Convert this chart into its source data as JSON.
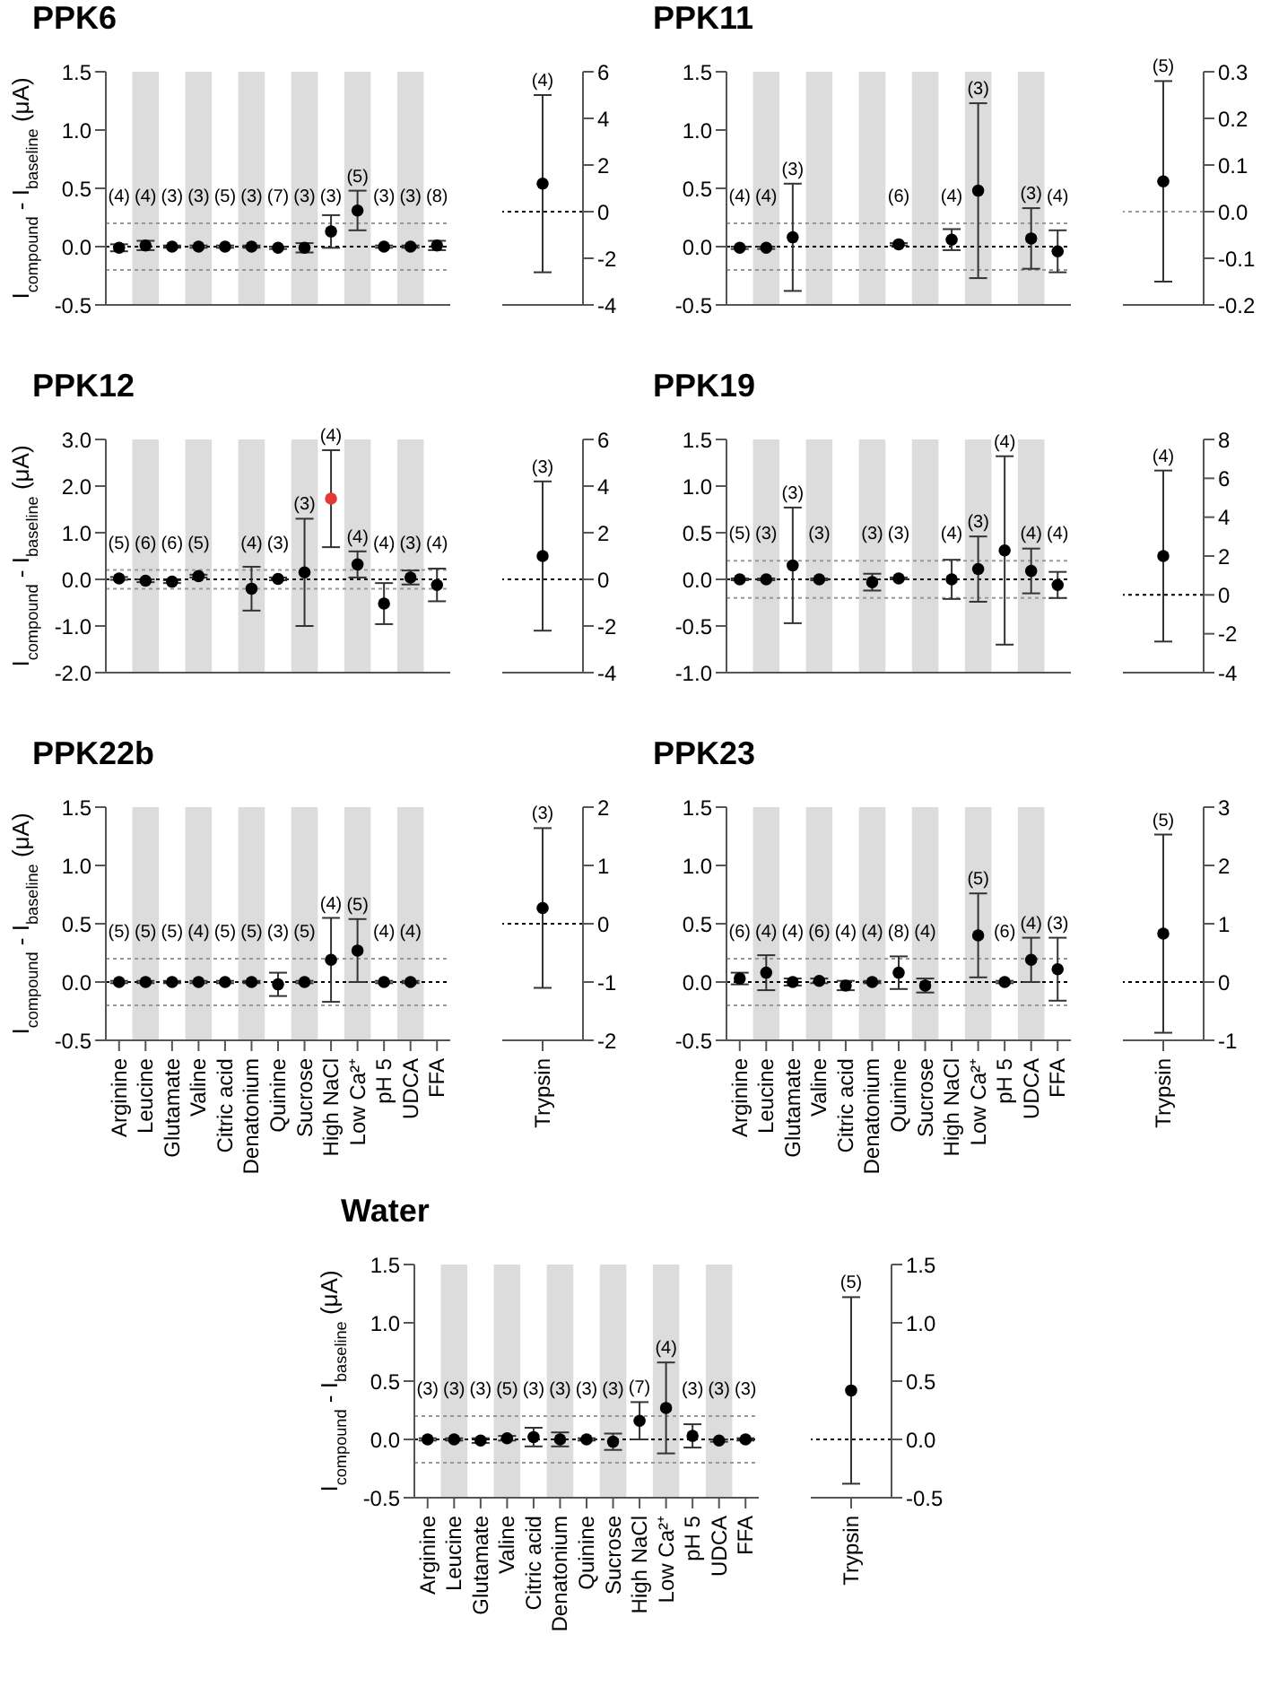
{
  "chart_data": [
    {
      "type": "scatter",
      "title": "PPK6",
      "ylabel": "I$_{compound}$ - I$_{baseline}$ (μA)",
      "categories": [
        "Arginine",
        "Leucine",
        "Glutamate",
        "Valine",
        "Citric acid",
        "Denatonium",
        "Quinine",
        "Sucrose",
        "High NaCl",
        "Low Ca²⁺",
        "pH 5",
        "UDCA",
        "FFA"
      ],
      "values": [
        -0.01,
        0.01,
        0,
        0,
        0,
        0,
        -0.01,
        -0.01,
        0.13,
        0.31,
        0,
        0,
        0.01
      ],
      "errors": [
        0.03,
        0.04,
        0.01,
        0.01,
        0.01,
        0.01,
        0.01,
        0.04,
        0.14,
        0.17,
        0.01,
        0.01,
        0.04
      ],
      "color": "#000000",
      "marker": "circle",
      "ylim": [
        -0.5,
        1.5
      ],
      "yticks": [
        -0.5,
        {
          "value": 0,
          "label": "0.0"
        },
        0.5,
        {
          "value": 1,
          "label": "1.0"
        },
        1.5
      ],
      "tick_labels": "y",
      "bands": [
        {
          "axis": "x",
          "from": "Leucine",
          "to": "Leucine",
          "color": "#dcdcdc"
        },
        {
          "axis": "x",
          "from": "Valine",
          "to": "Valine",
          "color": "#dcdcdc"
        },
        {
          "axis": "x",
          "from": "Denatonium",
          "to": "Denatonium",
          "color": "#dcdcdc"
        },
        {
          "axis": "x",
          "from": "Sucrose",
          "to": "Sucrose",
          "color": "#dcdcdc"
        },
        {
          "axis": "x",
          "from": "Low Ca²⁺",
          "to": "Low Ca²⁺",
          "color": "#dcdcdc"
        },
        {
          "axis": "x",
          "from": "UDCA",
          "to": "UDCA",
          "color": "#dcdcdc"
        }
      ],
      "ref_lines": [
        {
          "axis": "y",
          "value": 0,
          "line_style": "dotted",
          "color": "#000000"
        },
        {
          "axis": "y",
          "value": 0.2,
          "line_style": "dotted",
          "color": "#999999"
        },
        {
          "axis": "y",
          "value": -0.2,
          "line_style": "dotted",
          "color": "#999999"
        }
      ],
      "annotations": [
        {
          "text": "(4)",
          "x": "Arginine",
          "y": 0.02
        },
        {
          "text": "(4)",
          "x": "Leucine",
          "y": 0.05
        },
        {
          "text": "(3)",
          "x": "Glutamate",
          "y": 0.01
        },
        {
          "text": "(3)",
          "x": "Valine",
          "y": 0.01
        },
        {
          "text": "(5)",
          "x": "Citric acid",
          "y": 0.01
        },
        {
          "text": "(3)",
          "x": "Denatonium",
          "y": 0.01
        },
        {
          "text": "(7)",
          "x": "Quinine",
          "y": 0
        },
        {
          "text": "(3)",
          "x": "Sucrose",
          "y": 0.03
        },
        {
          "text": "(3)",
          "x": "High NaCl",
          "y": 0.27
        },
        {
          "text": "(5)",
          "x": "Low Ca²⁺",
          "y": 0.48
        },
        {
          "text": "(3)",
          "x": "pH 5",
          "y": 0.01
        },
        {
          "text": "(3)",
          "x": "UDCA",
          "y": 0.01
        },
        {
          "text": "(8)",
          "x": "FFA",
          "y": 0.05
        }
      ]
    },
    {
      "type": "scatter",
      "categories": [
        "Trypsin"
      ],
      "series": [
        {
          "values": [
            1.2
          ],
          "errors": [
            3.8
          ],
          "color": "#000000"
        }
      ],
      "marker": "circle",
      "ylim": [
        -4,
        6
      ],
      "yticks": [
        -4,
        -2,
        0,
        2,
        4,
        6
      ],
      "tick_labels": "y",
      "ref_lines": [
        {
          "axis": "y",
          "value": 0,
          "line_style": "dotted",
          "color": "#000000"
        }
      ],
      "annotations": [
        {
          "text": "(4)",
          "x": "Trypsin",
          "y": 5
        }
      ]
    },
    {
      "type": "scatter",
      "title": "PPK11",
      "categories": [
        "Arginine",
        "Leucine",
        "Glutamate",
        "Valine",
        "Citric acid",
        "Denatonium",
        "Quinine",
        "Sucrose",
        "High NaCl",
        "Low Ca²⁺",
        "pH 5",
        "UDCA",
        "FFA"
      ],
      "values": [
        -0.01,
        -0.01,
        0.08,
        null,
        null,
        null,
        0.02,
        null,
        0.06,
        0.48,
        null,
        0.07,
        -0.04
      ],
      "errors": [
        0.01,
        0.01,
        0.46,
        null,
        null,
        null,
        0.01,
        null,
        0.09,
        0.75,
        null,
        0.26,
        0.18
      ],
      "color": "#000000",
      "marker": "circle",
      "ylim": [
        -0.5,
        1.5
      ],
      "yticks": [
        -0.5,
        {
          "value": 0,
          "label": "0.0"
        },
        0.5,
        {
          "value": 1,
          "label": "1.0"
        },
        1.5
      ],
      "tick_labels": "y",
      "bands": [
        {
          "axis": "x",
          "from": "Leucine",
          "to": "Leucine",
          "color": "#dcdcdc"
        },
        {
          "axis": "x",
          "from": "Valine",
          "to": "Valine",
          "color": "#dcdcdc"
        },
        {
          "axis": "x",
          "from": "Denatonium",
          "to": "Denatonium",
          "color": "#dcdcdc"
        },
        {
          "axis": "x",
          "from": "Sucrose",
          "to": "Sucrose",
          "color": "#dcdcdc"
        },
        {
          "axis": "x",
          "from": "Low Ca²⁺",
          "to": "Low Ca²⁺",
          "color": "#dcdcdc"
        },
        {
          "axis": "x",
          "from": "UDCA",
          "to": "UDCA",
          "color": "#dcdcdc"
        }
      ],
      "ref_lines": [
        {
          "axis": "y",
          "value": 0,
          "line_style": "dotted",
          "color": "#000000"
        },
        {
          "axis": "y",
          "value": 0.2,
          "line_style": "dotted",
          "color": "#999999"
        },
        {
          "axis": "y",
          "value": -0.2,
          "line_style": "dotted",
          "color": "#999999"
        }
      ],
      "annotations": [
        {
          "text": "(4)",
          "x": "Arginine",
          "y": 0
        },
        {
          "text": "(4)",
          "x": "Leucine",
          "y": 0
        },
        {
          "text": "(3)",
          "x": "Glutamate",
          "y": 0.54
        },
        {
          "text": "(6)",
          "x": "Quinine",
          "y": 0.03
        },
        {
          "text": "(4)",
          "x": "High NaCl",
          "y": 0.15
        },
        {
          "text": "(3)",
          "x": "Low Ca²⁺",
          "y": 1.23
        },
        {
          "text": "(3)",
          "x": "UDCA",
          "y": 0.33
        },
        {
          "text": "(4)",
          "x": "FFA",
          "y": 0.14
        }
      ]
    },
    {
      "type": "scatter",
      "categories": [
        "Trypsin"
      ],
      "series": [
        {
          "values": [
            0.065
          ],
          "errors": [
            0.215
          ],
          "color": "#000000"
        }
      ],
      "marker": "circle",
      "ylim": [
        -0.2,
        0.3
      ],
      "yticks": [
        -0.2,
        -0.1,
        {
          "value": 0,
          "label": "0.0"
        },
        0.1,
        0.2,
        0.3
      ],
      "tick_labels": "y",
      "ref_lines": [
        {
          "axis": "y",
          "value": 0,
          "line_style": "dotted",
          "color": "#999999"
        }
      ],
      "annotations": [
        {
          "text": "(5)",
          "x": "Trypsin",
          "y": 0.28
        }
      ]
    },
    {
      "type": "scatter",
      "title": "PPK12",
      "ylabel": "I$_{compound}$ - I$_{baseline}$ (μA)",
      "categories": [
        "Arginine",
        "Leucine",
        "Glutamate",
        "Valine",
        "Citric acid",
        "Denatonium",
        "Quinine",
        "Sucrose",
        "High NaCl",
        "Low Ca²⁺",
        "pH 5",
        "UDCA",
        "FFA"
      ],
      "values": [
        0.02,
        -0.03,
        -0.05,
        0.07,
        null,
        -0.2,
        0.01,
        0.15,
        1.73,
        0.32,
        -0.52,
        0.04,
        -0.12
      ],
      "errors": [
        0.03,
        0.03,
        0.03,
        0.03,
        null,
        0.47,
        0.03,
        1.15,
        1.04,
        0.28,
        0.44,
        0.15,
        0.35
      ],
      "color": "#000000",
      "colors": [
        "#000000",
        "#000000",
        "#000000",
        "#000000",
        null,
        "#000000",
        "#000000",
        "#000000",
        "#e53935",
        "#000000",
        "#000000",
        "#000000",
        "#000000"
      ],
      "marker": "circle",
      "ylim": [
        -2,
        3
      ],
      "yticks": [
        {
          "value": -2,
          "label": "-2.0"
        },
        {
          "value": -1,
          "label": "-1.0"
        },
        {
          "value": 0,
          "label": "0.0"
        },
        {
          "value": 1,
          "label": "1.0"
        },
        {
          "value": 2,
          "label": "2.0"
        },
        {
          "value": 3,
          "label": "3.0"
        }
      ],
      "tick_labels": "y",
      "bands": [
        {
          "axis": "x",
          "from": "Leucine",
          "to": "Leucine",
          "color": "#dcdcdc"
        },
        {
          "axis": "x",
          "from": "Valine",
          "to": "Valine",
          "color": "#dcdcdc"
        },
        {
          "axis": "x",
          "from": "Denatonium",
          "to": "Denatonium",
          "color": "#dcdcdc"
        },
        {
          "axis": "x",
          "from": "Sucrose",
          "to": "Sucrose",
          "color": "#dcdcdc"
        },
        {
          "axis": "x",
          "from": "Low Ca²⁺",
          "to": "Low Ca²⁺",
          "color": "#dcdcdc"
        },
        {
          "axis": "x",
          "from": "UDCA",
          "to": "UDCA",
          "color": "#dcdcdc"
        }
      ],
      "ref_lines": [
        {
          "axis": "y",
          "value": 0,
          "line_style": "dotted",
          "color": "#000000"
        },
        {
          "axis": "y",
          "value": 0.2,
          "line_style": "dotted",
          "color": "#999999"
        },
        {
          "axis": "y",
          "value": -0.2,
          "line_style": "dotted",
          "color": "#999999"
        }
      ],
      "annotations": [
        {
          "text": "(5)",
          "x": "Arginine",
          "y": 0.05
        },
        {
          "text": "(6)",
          "x": "Leucine",
          "y": 0
        },
        {
          "text": "(6)",
          "x": "Glutamate",
          "y": -0.02
        },
        {
          "text": "(5)",
          "x": "Valine",
          "y": 0.1
        },
        {
          "text": "(4)",
          "x": "Denatonium",
          "y": 0.27
        },
        {
          "text": "(3)",
          "x": "Quinine",
          "y": 0.04
        },
        {
          "text": "(3)",
          "x": "Sucrose",
          "y": 1.3
        },
        {
          "text": "(4)",
          "x": "High NaCl",
          "y": 2.77
        },
        {
          "text": "(4)",
          "x": "Low Ca²⁺",
          "y": 0.6
        },
        {
          "text": "(4)",
          "x": "pH 5",
          "y": -0.08
        },
        {
          "text": "(3)",
          "x": "UDCA",
          "y": 0.19
        },
        {
          "text": "(4)",
          "x": "FFA",
          "y": 0.23
        }
      ]
    },
    {
      "type": "scatter",
      "categories": [
        "Trypsin"
      ],
      "series": [
        {
          "values": [
            1.0
          ],
          "errors": [
            3.2
          ],
          "color": "#000000"
        }
      ],
      "marker": "circle",
      "ylim": [
        -4,
        6
      ],
      "yticks": [
        -4,
        -2,
        0,
        2,
        4,
        6
      ],
      "tick_labels": "y",
      "ref_lines": [
        {
          "axis": "y",
          "value": 0,
          "line_style": "dotted",
          "color": "#000000"
        }
      ],
      "annotations": [
        {
          "text": "(3)",
          "x": "Trypsin",
          "y": 4.2
        }
      ]
    },
    {
      "type": "scatter",
      "title": "PPK19",
      "categories": [
        "Arginine",
        "Leucine",
        "Glutamate",
        "Valine",
        "Citric acid",
        "Denatonium",
        "Quinine",
        "Sucrose",
        "High NaCl",
        "Low Ca²⁺",
        "pH 5",
        "UDCA",
        "FFA"
      ],
      "values": [
        0,
        0,
        0.15,
        0,
        null,
        -0.03,
        0.01,
        null,
        0,
        0.11,
        0.31,
        0.09,
        -0.06
      ],
      "errors": [
        0.01,
        0.01,
        0.62,
        0.01,
        null,
        0.09,
        0.01,
        null,
        0.21,
        0.35,
        1.01,
        0.24,
        0.14
      ],
      "color": "#000000",
      "marker": "circle",
      "ylim": [
        -1,
        1.5
      ],
      "yticks": [
        {
          "value": -1,
          "label": "-1.0"
        },
        -0.5,
        {
          "value": 0,
          "label": "0.0"
        },
        0.5,
        {
          "value": 1,
          "label": "1.0"
        },
        1.5
      ],
      "tick_labels": "y",
      "bands": [
        {
          "axis": "x",
          "from": "Leucine",
          "to": "Leucine",
          "color": "#dcdcdc"
        },
        {
          "axis": "x",
          "from": "Valine",
          "to": "Valine",
          "color": "#dcdcdc"
        },
        {
          "axis": "x",
          "from": "Denatonium",
          "to": "Denatonium",
          "color": "#dcdcdc"
        },
        {
          "axis": "x",
          "from": "Sucrose",
          "to": "Sucrose",
          "color": "#dcdcdc"
        },
        {
          "axis": "x",
          "from": "Low Ca²⁺",
          "to": "Low Ca²⁺",
          "color": "#dcdcdc"
        },
        {
          "axis": "x",
          "from": "UDCA",
          "to": "UDCA",
          "color": "#dcdcdc"
        }
      ],
      "ref_lines": [
        {
          "axis": "y",
          "value": 0,
          "line_style": "dotted",
          "color": "#000000"
        },
        {
          "axis": "y",
          "value": 0.2,
          "line_style": "dotted",
          "color": "#999999"
        },
        {
          "axis": "y",
          "value": -0.2,
          "line_style": "dotted",
          "color": "#999999"
        }
      ],
      "annotations": [
        {
          "text": "(5)",
          "x": "Arginine",
          "y": 0.01
        },
        {
          "text": "(3)",
          "x": "Leucine",
          "y": 0.01
        },
        {
          "text": "(3)",
          "x": "Glutamate",
          "y": 0.77
        },
        {
          "text": "(3)",
          "x": "Valine",
          "y": 0.01
        },
        {
          "text": "(3)",
          "x": "Denatonium",
          "y": 0.06
        },
        {
          "text": "(3)",
          "x": "Quinine",
          "y": 0.02
        },
        {
          "text": "(4)",
          "x": "High NaCl",
          "y": 0.21
        },
        {
          "text": "(3)",
          "x": "Low Ca²⁺",
          "y": 0.46
        },
        {
          "text": "(4)",
          "x": "pH 5",
          "y": 1.32
        },
        {
          "text": "(4)",
          "x": "UDCA",
          "y": 0.33
        },
        {
          "text": "(4)",
          "x": "FFA",
          "y": 0.08
        }
      ]
    },
    {
      "type": "scatter",
      "categories": [
        "Trypsin"
      ],
      "series": [
        {
          "values": [
            2.0
          ],
          "errors": [
            4.4
          ],
          "color": "#000000"
        }
      ],
      "marker": "circle",
      "ylim": [
        -4,
        8
      ],
      "yticks": [
        -4,
        -2,
        0,
        2,
        4,
        6,
        8
      ],
      "tick_labels": "y",
      "ref_lines": [
        {
          "axis": "y",
          "value": 0,
          "line_style": "dotted",
          "color": "#000000"
        }
      ],
      "annotations": [
        {
          "text": "(4)",
          "x": "Trypsin",
          "y": 6.4
        }
      ]
    },
    {
      "type": "scatter",
      "title": "PPK22b",
      "ylabel": "I$_{compound}$ - I$_{baseline}$ (μA)",
      "categories": [
        "Arginine",
        "Leucine",
        "Glutamate",
        "Valine",
        "Citric acid",
        "Denatonium",
        "Quinine",
        "Sucrose",
        "High NaCl",
        "Low Ca²⁺",
        "pH 5",
        "UDCA",
        "FFA"
      ],
      "values": [
        0,
        0,
        0,
        0,
        0,
        0,
        -0.02,
        0,
        0.19,
        0.27,
        0,
        0,
        null
      ],
      "errors": [
        0.01,
        0.01,
        0.01,
        0.01,
        0.01,
        0.01,
        0.1,
        0.01,
        0.36,
        0.27,
        0.01,
        0.01,
        null
      ],
      "color": "#000000",
      "marker": "circle",
      "ylim": [
        -0.5,
        1.5
      ],
      "yticks": [
        -0.5,
        {
          "value": 0,
          "label": "0.0"
        },
        0.5,
        {
          "value": 1,
          "label": "1.0"
        },
        1.5
      ],
      "bands": [
        {
          "axis": "x",
          "from": "Leucine",
          "to": "Leucine",
          "color": "#dcdcdc"
        },
        {
          "axis": "x",
          "from": "Valine",
          "to": "Valine",
          "color": "#dcdcdc"
        },
        {
          "axis": "x",
          "from": "Denatonium",
          "to": "Denatonium",
          "color": "#dcdcdc"
        },
        {
          "axis": "x",
          "from": "Sucrose",
          "to": "Sucrose",
          "color": "#dcdcdc"
        },
        {
          "axis": "x",
          "from": "Low Ca²⁺",
          "to": "Low Ca²⁺",
          "color": "#dcdcdc"
        },
        {
          "axis": "x",
          "from": "UDCA",
          "to": "UDCA",
          "color": "#dcdcdc"
        }
      ],
      "ref_lines": [
        {
          "axis": "y",
          "value": 0,
          "line_style": "dotted",
          "color": "#000000"
        },
        {
          "axis": "y",
          "value": 0.2,
          "line_style": "dotted",
          "color": "#999999"
        },
        {
          "axis": "y",
          "value": -0.2,
          "line_style": "dotted",
          "color": "#999999"
        }
      ],
      "annotations": [
        {
          "text": "(5)",
          "x": "Arginine",
          "y": 0.01
        },
        {
          "text": "(5)",
          "x": "Leucine",
          "y": 0.01
        },
        {
          "text": "(5)",
          "x": "Glutamate",
          "y": 0.01
        },
        {
          "text": "(4)",
          "x": "Valine",
          "y": 0.01
        },
        {
          "text": "(5)",
          "x": "Citric acid",
          "y": 0.01
        },
        {
          "text": "(5)",
          "x": "Denatonium",
          "y": 0.01
        },
        {
          "text": "(3)",
          "x": "Quinine",
          "y": 0.08
        },
        {
          "text": "(5)",
          "x": "Sucrose",
          "y": 0.01
        },
        {
          "text": "(4)",
          "x": "High NaCl",
          "y": 0.55
        },
        {
          "text": "(5)",
          "x": "Low Ca²⁺",
          "y": 0.54
        },
        {
          "text": "(4)",
          "x": "pH 5",
          "y": 0.01
        },
        {
          "text": "(4)",
          "x": "UDCA",
          "y": 0.01
        }
      ]
    },
    {
      "type": "scatter",
      "categories": [
        "Trypsin"
      ],
      "series": [
        {
          "values": [
            0.27
          ],
          "errors": [
            1.37
          ],
          "color": "#000000"
        }
      ],
      "marker": "circle",
      "ylim": [
        -2,
        2
      ],
      "yticks": [
        -2,
        -1,
        0,
        1,
        2
      ],
      "ref_lines": [
        {
          "axis": "y",
          "value": 0,
          "line_style": "dotted",
          "color": "#000000"
        }
      ],
      "annotations": [
        {
          "text": "(3)",
          "x": "Trypsin",
          "y": 1.64
        }
      ]
    },
    {
      "type": "scatter",
      "title": "PPK23",
      "categories": [
        "Arginine",
        "Leucine",
        "Glutamate",
        "Valine",
        "Citric acid",
        "Denatonium",
        "Quinine",
        "Sucrose",
        "High NaCl",
        "Low Ca²⁺",
        "pH 5",
        "UDCA",
        "FFA"
      ],
      "values": [
        0.03,
        0.08,
        0,
        0.01,
        -0.03,
        0,
        0.08,
        -0.03,
        null,
        0.4,
        0,
        0.19,
        0.11
      ],
      "errors": [
        0.05,
        0.15,
        0.03,
        0.02,
        0.04,
        0.01,
        0.14,
        0.06,
        null,
        0.36,
        0.01,
        0.19,
        0.27
      ],
      "color": "#000000",
      "marker": "circle",
      "ylim": [
        -0.5,
        1.5
      ],
      "yticks": [
        -0.5,
        {
          "value": 0,
          "label": "0.0"
        },
        0.5,
        {
          "value": 1,
          "label": "1.0"
        },
        1.5
      ],
      "bands": [
        {
          "axis": "x",
          "from": "Leucine",
          "to": "Leucine",
          "color": "#dcdcdc"
        },
        {
          "axis": "x",
          "from": "Valine",
          "to": "Valine",
          "color": "#dcdcdc"
        },
        {
          "axis": "x",
          "from": "Denatonium",
          "to": "Denatonium",
          "color": "#dcdcdc"
        },
        {
          "axis": "x",
          "from": "Sucrose",
          "to": "Sucrose",
          "color": "#dcdcdc"
        },
        {
          "axis": "x",
          "from": "Low Ca²⁺",
          "to": "Low Ca²⁺",
          "color": "#dcdcdc"
        },
        {
          "axis": "x",
          "from": "UDCA",
          "to": "UDCA",
          "color": "#dcdcdc"
        }
      ],
      "ref_lines": [
        {
          "axis": "y",
          "value": 0,
          "line_style": "dotted",
          "color": "#000000"
        },
        {
          "axis": "y",
          "value": 0.2,
          "line_style": "dotted",
          "color": "#999999"
        },
        {
          "axis": "y",
          "value": -0.2,
          "line_style": "dotted",
          "color": "#999999"
        }
      ],
      "annotations": [
        {
          "text": "(6)",
          "x": "Arginine",
          "y": 0.08
        },
        {
          "text": "(4)",
          "x": "Leucine",
          "y": 0.23
        },
        {
          "text": "(4)",
          "x": "Glutamate",
          "y": 0.03
        },
        {
          "text": "(6)",
          "x": "Valine",
          "y": 0.03
        },
        {
          "text": "(4)",
          "x": "Citric acid",
          "y": 0.01
        },
        {
          "text": "(4)",
          "x": "Denatonium",
          "y": 0.01
        },
        {
          "text": "(8)",
          "x": "Quinine",
          "y": 0.22
        },
        {
          "text": "(4)",
          "x": "Sucrose",
          "y": 0.03
        },
        {
          "text": "(5)",
          "x": "Low Ca²⁺",
          "y": 0.76
        },
        {
          "text": "(6)",
          "x": "pH 5",
          "y": 0.01
        },
        {
          "text": "(4)",
          "x": "UDCA",
          "y": 0.38
        },
        {
          "text": "(3)",
          "x": "FFA",
          "y": 0.38
        }
      ]
    },
    {
      "type": "scatter",
      "categories": [
        "Trypsin"
      ],
      "series": [
        {
          "values": [
            0.83
          ],
          "errors": [
            1.7
          ],
          "color": "#000000"
        }
      ],
      "marker": "circle",
      "ylim": [
        -1,
        3
      ],
      "yticks": [
        -1,
        0,
        1,
        2,
        3
      ],
      "ref_lines": [
        {
          "axis": "y",
          "value": 0,
          "line_style": "dotted",
          "color": "#000000"
        }
      ],
      "annotations": [
        {
          "text": "(5)",
          "x": "Trypsin",
          "y": 2.53
        }
      ]
    },
    {
      "type": "scatter",
      "title": "Water",
      "ylabel": "I$_{compound}$ - I$_{baseline}$ (μA)",
      "categories": [
        "Arginine",
        "Leucine",
        "Glutamate",
        "Valine",
        "Citric acid",
        "Denatonium",
        "Quinine",
        "Sucrose",
        "High NaCl",
        "Low Ca²⁺",
        "pH 5",
        "UDCA",
        "FFA"
      ],
      "values": [
        0,
        0,
        -0.01,
        0.01,
        0.02,
        0,
        0,
        -0.02,
        0.16,
        0.27,
        0.03,
        -0.01,
        0
      ],
      "errors": [
        0.01,
        0.01,
        0.02,
        0.02,
        0.08,
        0.06,
        0.01,
        0.07,
        0.16,
        0.39,
        0.1,
        0.01,
        0.01
      ],
      "color": "#000000",
      "marker": "circle",
      "ylim": [
        -0.5,
        1.5
      ],
      "yticks": [
        -0.5,
        {
          "value": 0,
          "label": "0.0"
        },
        0.5,
        {
          "value": 1,
          "label": "1.0"
        },
        1.5
      ],
      "bands": [
        {
          "axis": "x",
          "from": "Leucine",
          "to": "Leucine",
          "color": "#dcdcdc"
        },
        {
          "axis": "x",
          "from": "Valine",
          "to": "Valine",
          "color": "#dcdcdc"
        },
        {
          "axis": "x",
          "from": "Denatonium",
          "to": "Denatonium",
          "color": "#dcdcdc"
        },
        {
          "axis": "x",
          "from": "Sucrose",
          "to": "Sucrose",
          "color": "#dcdcdc"
        },
        {
          "axis": "x",
          "from": "Low Ca²⁺",
          "to": "Low Ca²⁺",
          "color": "#dcdcdc"
        },
        {
          "axis": "x",
          "from": "UDCA",
          "to": "UDCA",
          "color": "#dcdcdc"
        }
      ],
      "ref_lines": [
        {
          "axis": "y",
          "value": 0,
          "line_style": "dotted",
          "color": "#000000"
        },
        {
          "axis": "y",
          "value": 0.2,
          "line_style": "dotted",
          "color": "#999999"
        },
        {
          "axis": "y",
          "value": -0.2,
          "line_style": "dotted",
          "color": "#999999"
        }
      ],
      "annotations": [
        {
          "text": "(3)",
          "x": "Arginine",
          "y": 0.01
        },
        {
          "text": "(3)",
          "x": "Leucine",
          "y": 0.01
        },
        {
          "text": "(3)",
          "x": "Glutamate",
          "y": 0.01
        },
        {
          "text": "(5)",
          "x": "Valine",
          "y": 0.03
        },
        {
          "text": "(3)",
          "x": "Citric acid",
          "y": 0.1
        },
        {
          "text": "(3)",
          "x": "Denatonium",
          "y": 0.06
        },
        {
          "text": "(3)",
          "x": "Quinine",
          "y": 0.01
        },
        {
          "text": "(3)",
          "x": "Sucrose",
          "y": 0.05
        },
        {
          "text": "(7)",
          "x": "High NaCl",
          "y": 0.32
        },
        {
          "text": "(4)",
          "x": "Low Ca²⁺",
          "y": 0.66
        },
        {
          "text": "(3)",
          "x": "pH 5",
          "y": 0.13
        },
        {
          "text": "(3)",
          "x": "UDCA",
          "y": 0
        },
        {
          "text": "(3)",
          "x": "FFA",
          "y": 0.01
        }
      ]
    },
    {
      "type": "scatter",
      "categories": [
        "Trypsin"
      ],
      "series": [
        {
          "values": [
            0.42
          ],
          "errors": [
            0.8
          ],
          "color": "#000000"
        }
      ],
      "marker": "circle",
      "ylim": [
        -0.5,
        1.5
      ],
      "yticks": [
        -0.5,
        {
          "value": 0,
          "label": "0.0"
        },
        0.5,
        {
          "value": 1,
          "label": "1.0"
        },
        1.5
      ],
      "ref_lines": [
        {
          "axis": "y",
          "value": 0,
          "line_style": "dotted",
          "color": "#000000"
        }
      ],
      "annotations": [
        {
          "text": "(5)",
          "x": "Trypsin",
          "y": 1.22
        }
      ]
    }
  ]
}
